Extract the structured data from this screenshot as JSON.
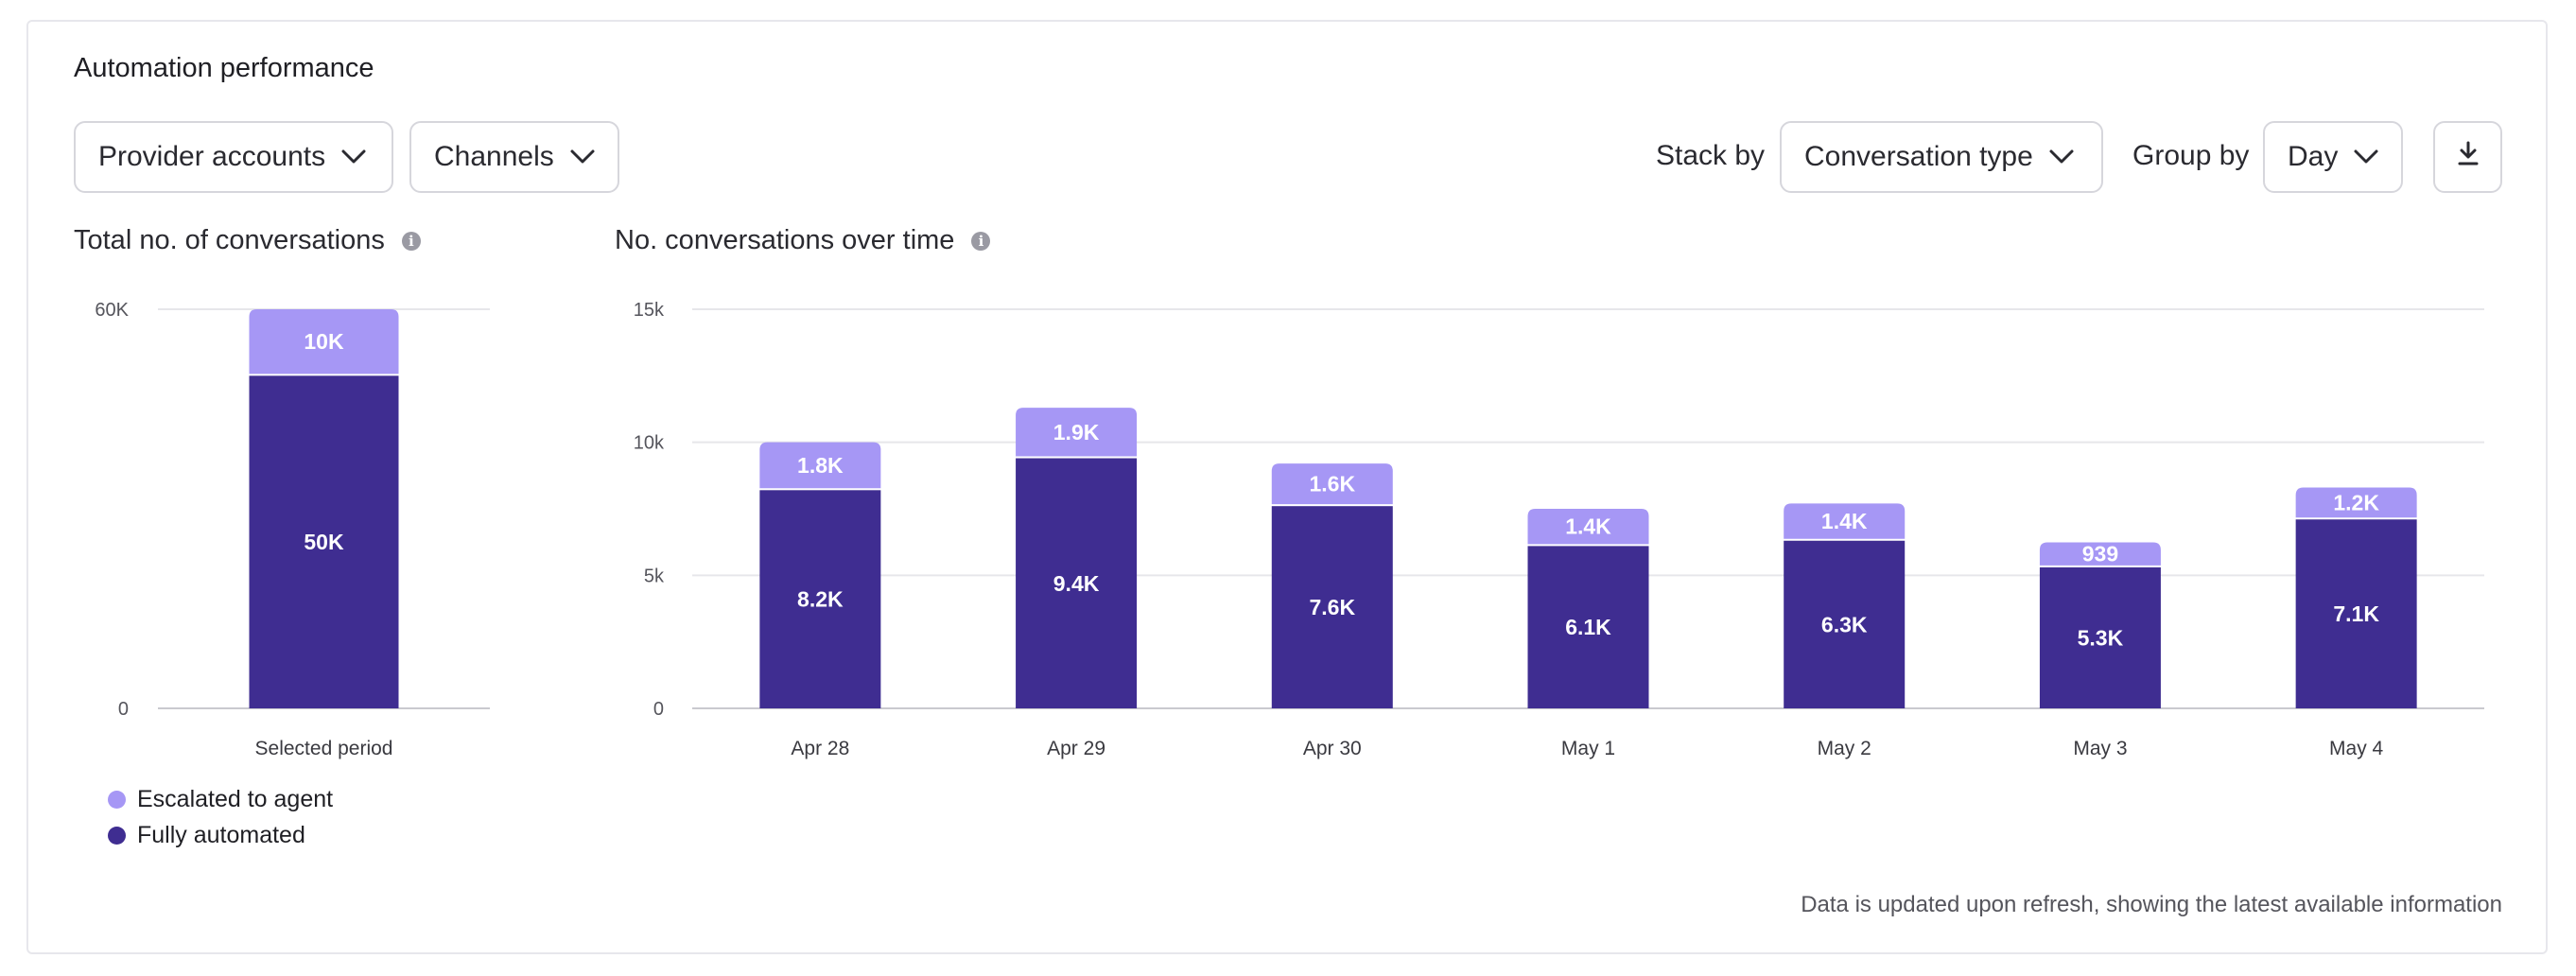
{
  "card": {
    "title": "Automation performance",
    "footnote": "Data is updated upon refresh, showing the latest available information"
  },
  "filters": {
    "provider_accounts": "Provider accounts",
    "channels": "Channels",
    "stack_by_label": "Stack by",
    "stack_by_value": "Conversation type",
    "group_by_label": "Group by",
    "group_by_value": "Day"
  },
  "colors": {
    "escalated": "#a697f5",
    "automated": "#3f2d91",
    "grid": "#e6e6ea",
    "axis": "#c9c9cf"
  },
  "legend": {
    "escalated": "Escalated to agent",
    "automated": "Fully automated"
  },
  "chart_data": [
    {
      "type": "bar",
      "stacked": true,
      "title": "Total no. of conversations",
      "categories": [
        "Selected period"
      ],
      "ylim": [
        0,
        60000
      ],
      "y_ticks": [
        0,
        60000
      ],
      "y_tick_labels": [
        "0",
        "60K"
      ],
      "series": [
        {
          "name": "Fully automated",
          "values": [
            50000
          ],
          "labels": [
            "50K"
          ]
        },
        {
          "name": "Escalated to agent",
          "values": [
            10000
          ],
          "labels": [
            "10K"
          ]
        }
      ]
    },
    {
      "type": "bar",
      "stacked": true,
      "title": "No. conversations over time",
      "categories": [
        "Apr 28",
        "Apr 29",
        "Apr 30",
        "May 1",
        "May 2",
        "May 3",
        "May 4"
      ],
      "ylim": [
        0,
        15000
      ],
      "y_ticks": [
        0,
        5000,
        10000,
        15000
      ],
      "y_tick_labels": [
        "0",
        "5k",
        "10k",
        "15k"
      ],
      "series": [
        {
          "name": "Fully automated",
          "values": [
            8200,
            9400,
            7600,
            6100,
            6300,
            5300,
            7100
          ],
          "labels": [
            "8.2K",
            "9.4K",
            "7.6K",
            "6.1K",
            "6.3K",
            "5.3K",
            "7.1K"
          ]
        },
        {
          "name": "Escalated to agent",
          "values": [
            1800,
            1900,
            1600,
            1400,
            1400,
            939,
            1200
          ],
          "labels": [
            "1.8K",
            "1.9K",
            "1.6K",
            "1.4K",
            "1.4K",
            "939",
            "1.2K"
          ]
        }
      ]
    }
  ]
}
